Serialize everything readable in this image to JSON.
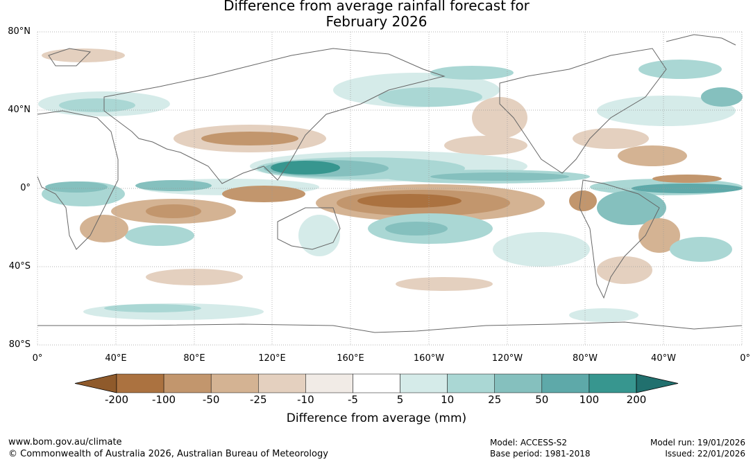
{
  "title": {
    "line1": "Difference from average rainfall forecast for",
    "line2": "February 2026"
  },
  "map": {
    "lat_labels": [
      "80°N",
      "40°N",
      "0°",
      "40°S",
      "80°S"
    ],
    "lon_labels": [
      "0°",
      "40°E",
      "80°E",
      "120°E",
      "160°E",
      "160°W",
      "120°W",
      "80°W",
      "40°W",
      "0°"
    ]
  },
  "colorbar": {
    "ticks": [
      "-200",
      "-100",
      "-50",
      "-25",
      "-10",
      "-5",
      "5",
      "10",
      "25",
      "50",
      "100",
      "200"
    ],
    "colors": [
      "#8f5a2b",
      "#ab7240",
      "#c2966d",
      "#d4b393",
      "#e4d0bf",
      "#f1ebe6",
      "#ffffff",
      "#d5ebe9",
      "#aad7d4",
      "#85c0be",
      "#5ea9a9",
      "#37968f",
      "#21706e"
    ],
    "label": "Difference from average (mm)"
  },
  "footer": {
    "website": "www.bom.gov.au/climate",
    "copyright": "© Commonwealth of Australia 2026, Australian Bureau of Meteorology",
    "model": "Model: ACCESS-S2",
    "base_period": "Base period: 1981-2018",
    "model_run": "Model run: 19/01/2026",
    "issued": "Issued: 22/01/2026"
  }
}
